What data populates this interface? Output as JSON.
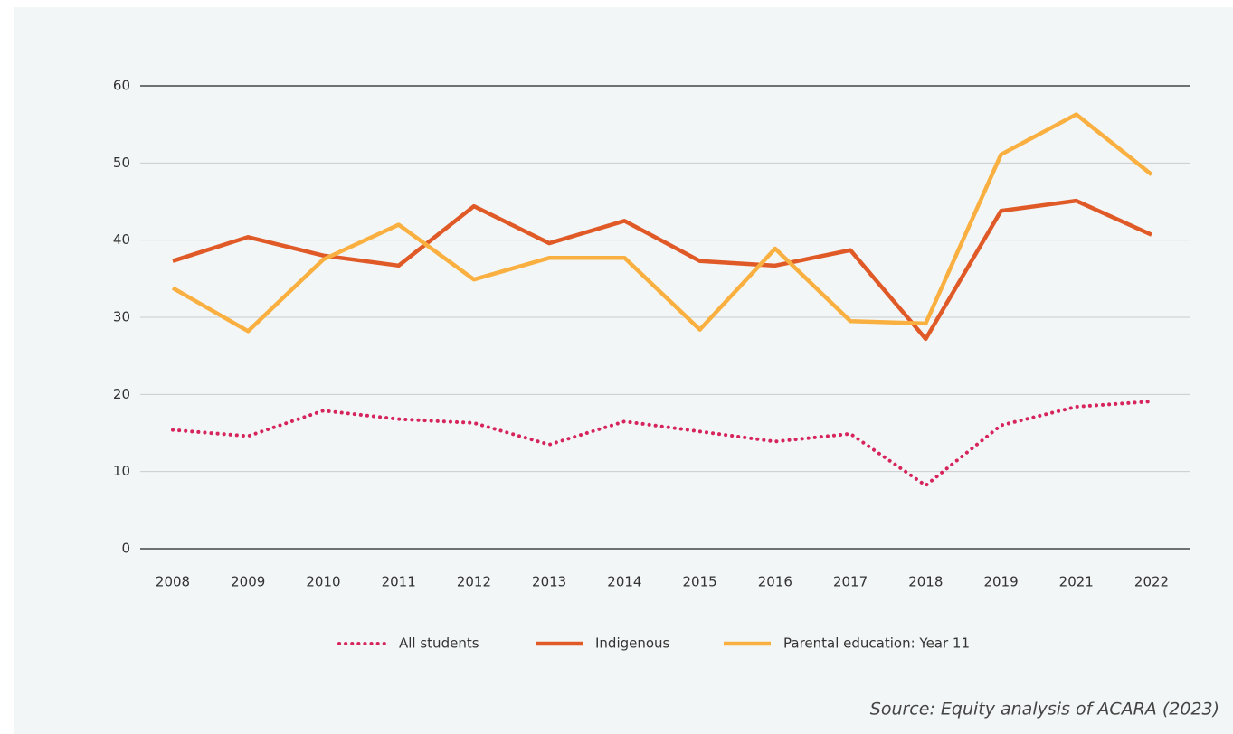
{
  "chart_data": {
    "type": "line",
    "categories": [
      "2008",
      "2009",
      "2010",
      "2011",
      "2012",
      "2013",
      "2014",
      "2015",
      "2016",
      "2017",
      "2018",
      "2019",
      "2021",
      "2022"
    ],
    "series": [
      {
        "name": "All students",
        "color": "#d6245c",
        "dash": "dotted",
        "values": [
          15.4,
          14.6,
          17.9,
          16.8,
          16.3,
          13.5,
          16.5,
          15.2,
          13.9,
          14.9,
          8.2,
          16.0,
          18.4,
          19.1
        ]
      },
      {
        "name": "Indigenous",
        "color": "#e05a28",
        "dash": "solid",
        "values": [
          37.3,
          40.4,
          38.0,
          36.7,
          44.4,
          39.6,
          42.5,
          37.3,
          36.7,
          38.7,
          27.2,
          43.8,
          45.1,
          40.7
        ]
      },
      {
        "name": "Parental education: Year 11",
        "color": "#f9b040",
        "dash": "solid",
        "values": [
          33.8,
          28.2,
          37.5,
          42.0,
          34.9,
          37.7,
          37.7,
          28.4,
          38.9,
          29.5,
          29.2,
          51.1,
          56.3,
          48.5
        ]
      }
    ],
    "ylim": [
      0,
      60
    ],
    "yticks": [
      0,
      10,
      20,
      30,
      40,
      50,
      60
    ],
    "grid": true,
    "legend": "bottom",
    "source": "Source: Equity analysis of ACARA (2023)"
  }
}
